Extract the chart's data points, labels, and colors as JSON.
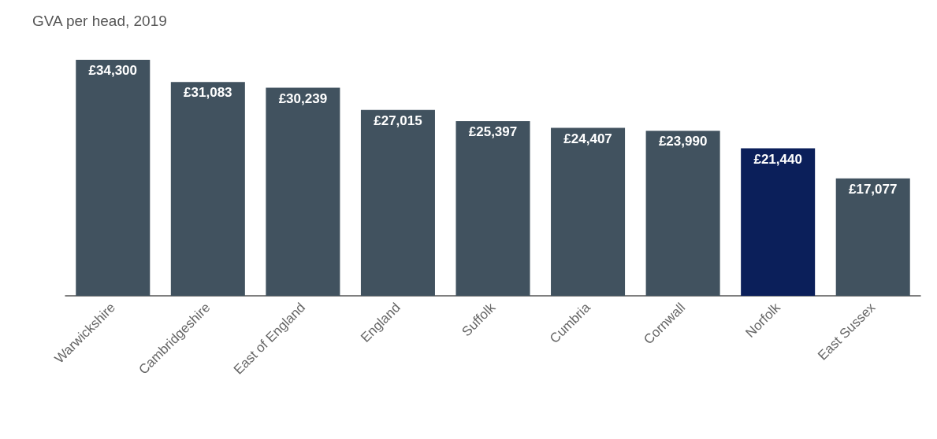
{
  "chart_data": {
    "type": "bar",
    "title": "GVA per head, 2019",
    "categories": [
      "Warwickshire",
      "Cambridgeshire",
      "East of England",
      "England",
      "Suffolk",
      "Cumbria",
      "Cornwall",
      "Norfolk",
      "East Sussex"
    ],
    "values": [
      34300,
      31083,
      30239,
      27015,
      25397,
      24407,
      23990,
      21440,
      17077
    ],
    "value_labels": [
      "£34,300",
      "£31,083",
      "£30,239",
      "£27,015",
      "£25,397",
      "£24,407",
      "£23,990",
      "£21,440",
      "£17,077"
    ],
    "colors": [
      "#41525f",
      "#41525f",
      "#41525f",
      "#41525f",
      "#41525f",
      "#41525f",
      "#41525f",
      "#0b1f5a",
      "#41525f"
    ]
  }
}
